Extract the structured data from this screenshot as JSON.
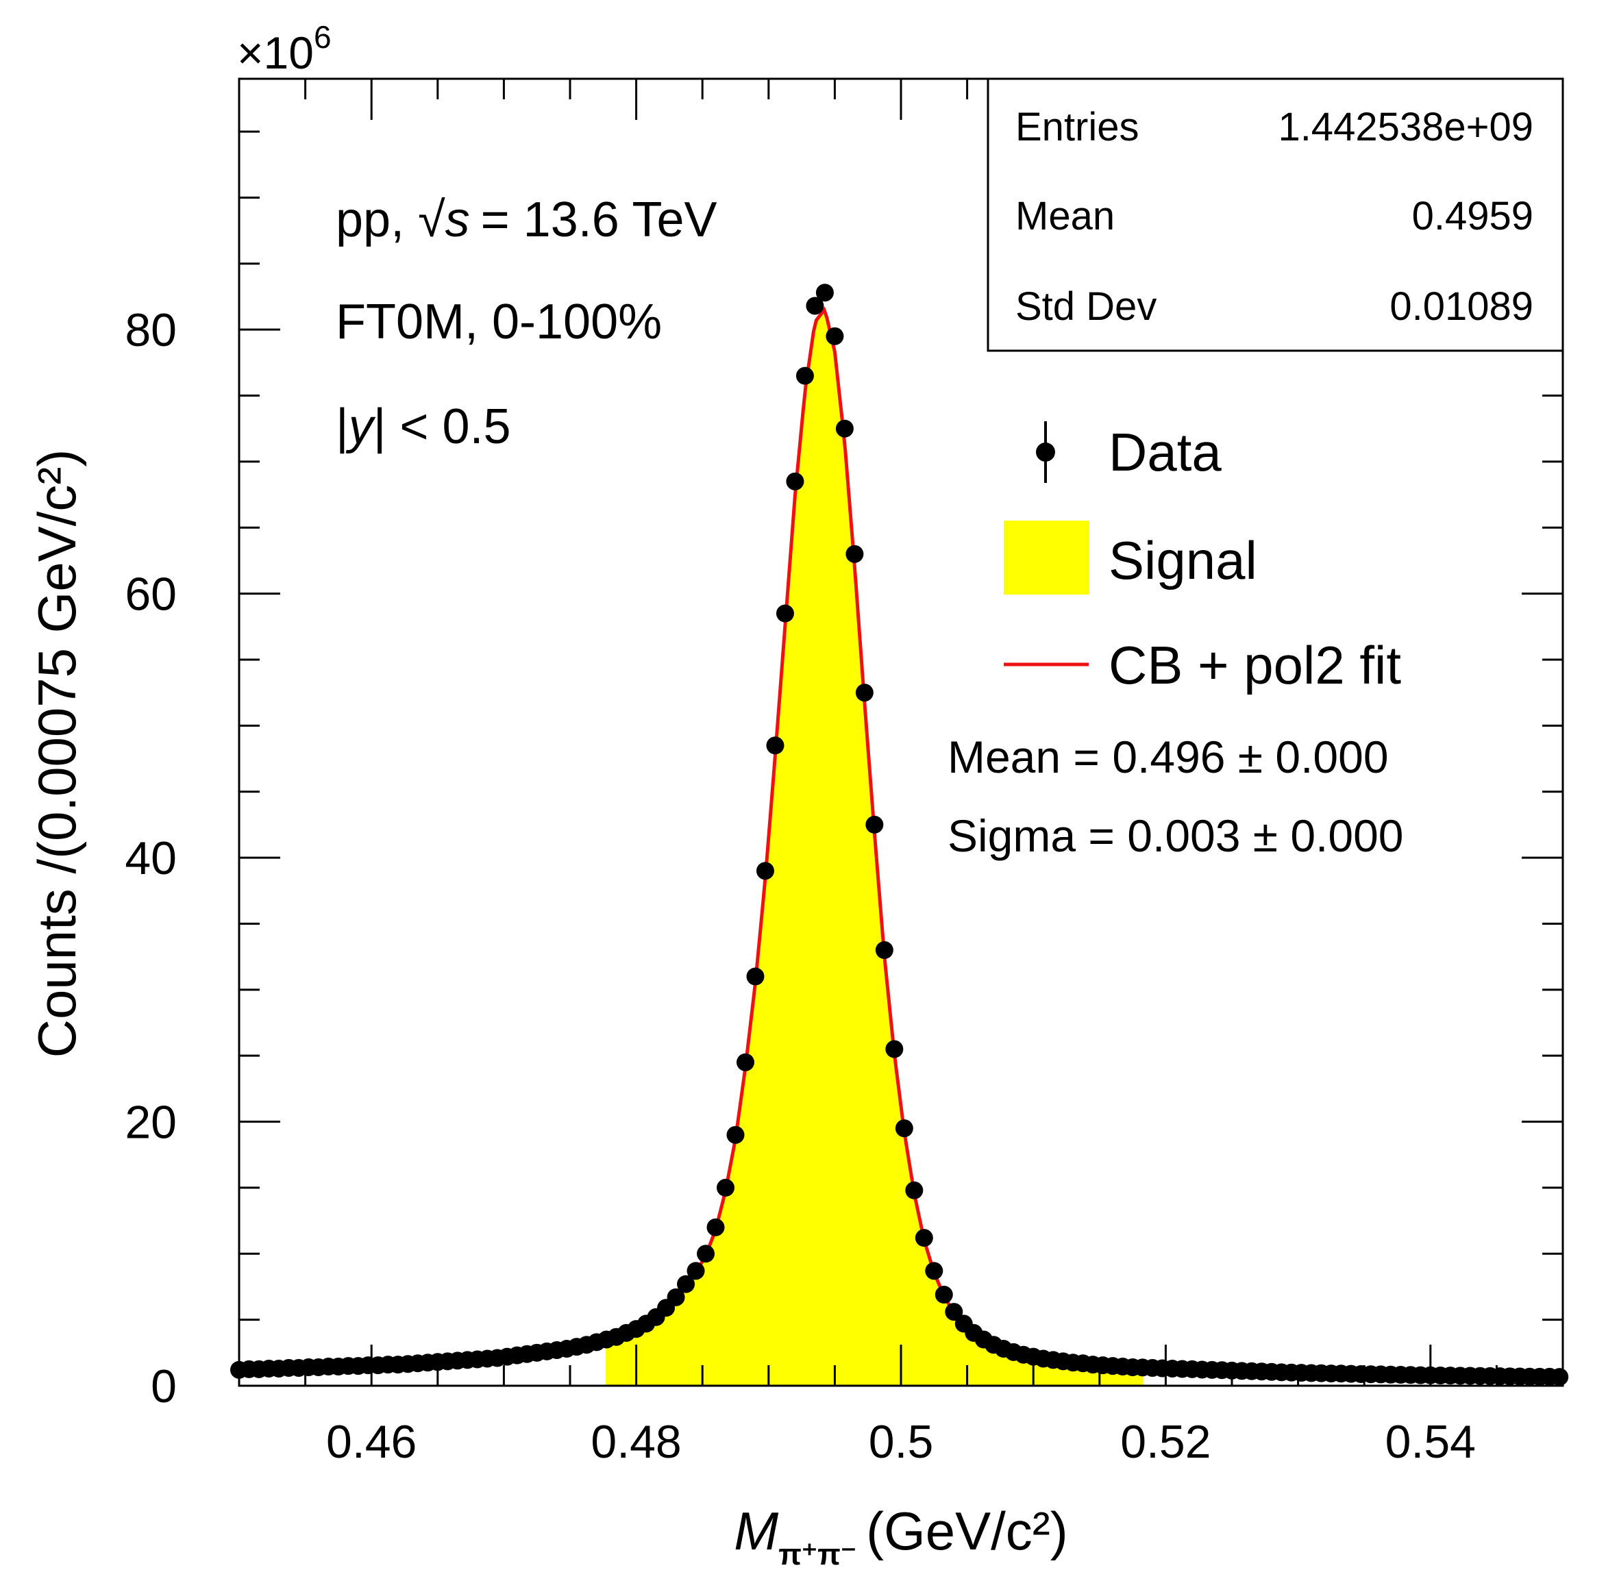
{
  "chart_data": {
    "type": "scatter",
    "title": "",
    "xlabel": {
      "var": "M",
      "sub": "π⁺π⁻",
      "unit": "(GeV/c²)"
    },
    "ylabel": "Counts /(0.00075 GeV/c²)",
    "y_exponent": "×10",
    "y_exponent_power": "6",
    "xlim": [
      0.45,
      0.55
    ],
    "ylim": [
      0,
      99
    ],
    "x_ticks": [
      0.46,
      0.48,
      0.5,
      0.52,
      0.54
    ],
    "x_tick_labels": [
      "0.46",
      "0.48",
      "0.5",
      "0.52",
      "0.54"
    ],
    "y_ticks": [
      0,
      20,
      40,
      60,
      80
    ],
    "y_tick_labels": [
      "0",
      "20",
      "40",
      "60",
      "80"
    ],
    "grid": false,
    "stats_box": {
      "rows": [
        {
          "label": "Entries",
          "value": "1.442538e+09"
        },
        {
          "label": "Mean",
          "value": "0.4959"
        },
        {
          "label": "Std Dev",
          "value": "0.01089"
        }
      ]
    },
    "annotations": {
      "energy_prefix": "pp,",
      "energy_sqrt": "√",
      "energy_var": "s",
      "energy_value": "= 13.6 TeV",
      "multiplicity": "FT0M, 0-100%",
      "rapidity_open": "|",
      "rapidity_var": "y",
      "rapidity_rest": "| < 0.5"
    },
    "legend": {
      "placement": "right",
      "entries": [
        {
          "label": "Data",
          "style": "marker"
        },
        {
          "label": "Signal",
          "style": "fill"
        },
        {
          "label": "CB + pol2 fit",
          "style": "line"
        }
      ]
    },
    "fit_params": [
      "Mean = 0.496 ± 0.000",
      "Sigma = 0.003 ± 0.000"
    ],
    "colors": {
      "data": "#000000",
      "signal": "#ffff00",
      "fit": "#ee1111"
    },
    "signal_range": [
      0.4777,
      0.5183
    ],
    "series": [
      {
        "name": "Data",
        "x": [
          0.45,
          0.45075,
          0.4515,
          0.45225,
          0.453,
          0.45375,
          0.4545,
          0.45525,
          0.456,
          0.45675,
          0.4575,
          0.45825,
          0.459,
          0.45975,
          0.4605,
          0.46125,
          0.462,
          0.46275,
          0.4635,
          0.46425,
          0.465,
          0.46575,
          0.4665,
          0.46725,
          0.468,
          0.46875,
          0.4695,
          0.47025,
          0.471,
          0.47175,
          0.4725,
          0.47325,
          0.474,
          0.47475,
          0.4755,
          0.47625,
          0.477,
          0.47775,
          0.4785,
          0.47925,
          0.48,
          0.48075,
          0.4815,
          0.48225,
          0.483,
          0.48375,
          0.4845,
          0.48525,
          0.486,
          0.48675,
          0.4875,
          0.48825,
          0.489,
          0.48975,
          0.4905,
          0.49125,
          0.492,
          0.49275,
          0.4935,
          0.49425,
          0.495,
          0.49575,
          0.4965,
          0.49725,
          0.498,
          0.49875,
          0.4995,
          0.50025,
          0.501,
          0.50175,
          0.5025,
          0.50325,
          0.504,
          0.50475,
          0.5055,
          0.50625,
          0.507,
          0.50775,
          0.5085,
          0.50925,
          0.51,
          0.51075,
          0.5115,
          0.51225,
          0.513,
          0.51375,
          0.5145,
          0.51525,
          0.516,
          0.51675,
          0.5175,
          0.51825,
          0.519,
          0.51975,
          0.5205,
          0.52125,
          0.522,
          0.52275,
          0.5235,
          0.52425,
          0.525,
          0.52575,
          0.5265,
          0.52725,
          0.528,
          0.52875,
          0.5295,
          0.53025,
          0.531,
          0.53175,
          0.5325,
          0.53325,
          0.534,
          0.53475,
          0.5355,
          0.53625,
          0.537,
          0.53775,
          0.5385,
          0.53925,
          0.54,
          0.54075,
          0.5415,
          0.54225,
          0.543,
          0.54375,
          0.5445,
          0.54525,
          0.546,
          0.54675,
          0.5475,
          0.54825,
          0.549,
          0.54975
        ],
        "y": [
          1.2,
          1.25,
          1.25,
          1.3,
          1.3,
          1.35,
          1.35,
          1.4,
          1.4,
          1.45,
          1.45,
          1.5,
          1.5,
          1.55,
          1.55,
          1.6,
          1.6,
          1.65,
          1.7,
          1.75,
          1.8,
          1.85,
          1.9,
          1.95,
          2.0,
          2.05,
          2.1,
          2.2,
          2.3,
          2.4,
          2.5,
          2.6,
          2.7,
          2.8,
          2.95,
          3.1,
          3.3,
          3.5,
          3.7,
          4.0,
          4.3,
          4.7,
          5.2,
          5.9,
          6.7,
          7.7,
          8.7,
          10.0,
          12.0,
          15.0,
          19.0,
          24.5,
          31.0,
          39.0,
          48.5,
          58.5,
          68.5,
          76.5,
          81.8,
          82.8,
          79.5,
          72.5,
          63.0,
          52.5,
          42.5,
          33.0,
          25.5,
          19.5,
          14.8,
          11.2,
          8.7,
          6.9,
          5.6,
          4.7,
          4.0,
          3.5,
          3.1,
          2.8,
          2.55,
          2.35,
          2.2,
          2.05,
          1.95,
          1.85,
          1.75,
          1.7,
          1.6,
          1.55,
          1.5,
          1.45,
          1.4,
          1.38,
          1.35,
          1.32,
          1.3,
          1.27,
          1.25,
          1.22,
          1.2,
          1.18,
          1.15,
          1.12,
          1.1,
          1.08,
          1.05,
          1.02,
          1.0,
          0.98,
          0.96,
          0.95,
          0.93,
          0.92,
          0.9,
          0.88,
          0.87,
          0.86,
          0.84,
          0.83,
          0.82,
          0.8,
          0.79,
          0.78,
          0.77,
          0.76,
          0.75,
          0.74,
          0.73,
          0.72,
          0.71,
          0.7,
          0.69,
          0.68,
          0.68,
          0.67
        ]
      }
    ]
  }
}
